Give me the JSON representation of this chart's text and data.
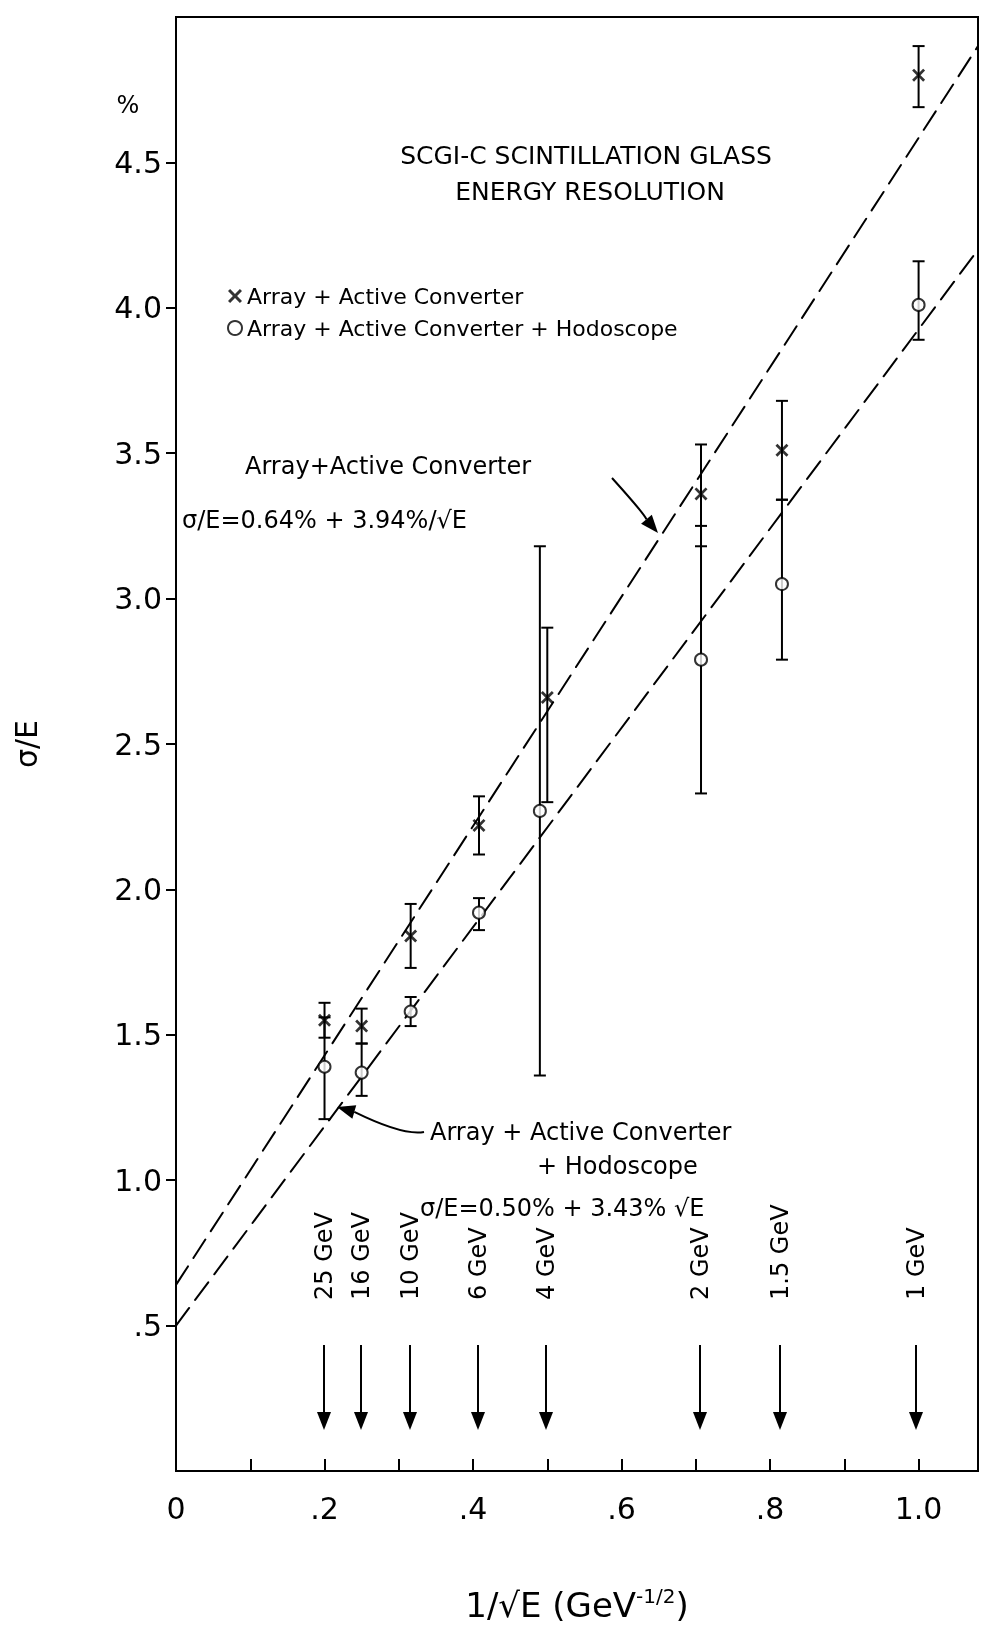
{
  "chart_data": {
    "type": "scatter",
    "title": "SCGI-C SCINTILLATION GLASS ENERGY RESOLUTION",
    "xlabel": "1/√E (GeV$^{-1/2}$)",
    "ylabel": "σ/E",
    "xlim": [
      0,
      1.08
    ],
    "ylim": [
      0,
      5
    ],
    "xticks": [
      0,
      {
        "value": 0.1,
        "label": null
      },
      {
        "value": 0.2,
        "label": ".2"
      },
      {
        "value": 0.3,
        "label": null
      },
      {
        "value": 0.4,
        "label": ".4"
      },
      {
        "value": 0.5,
        "label": null
      },
      {
        "value": 0.6,
        "label": ".6"
      },
      {
        "value": 0.7,
        "label": null
      },
      {
        "value": 0.8,
        "label": ".8"
      },
      {
        "value": 0.9,
        "label": null
      },
      {
        "value": 1.0,
        "label": "1.0"
      }
    ],
    "yticks": [
      {
        "value": 0.5,
        "label": ".5"
      },
      {
        "value": 1.0,
        "label": "1.0"
      },
      1.5,
      {
        "value": 2.0,
        "label": "2.0"
      },
      2.5,
      {
        "value": 3.0,
        "label": "3.0"
      },
      3.5,
      {
        "value": 4.0,
        "label": "4.0"
      },
      4.5
    ],
    "grid": false,
    "legend": "top left",
    "series": [
      {
        "name": "Array + Active Converter",
        "marker": "cross",
        "color": "#000000",
        "x": [
          0.2,
          0.25,
          0.316,
          0.408,
          0.5,
          0.707,
          0.816,
          1.0
        ],
        "values": [
          1.55,
          1.53,
          1.84,
          2.22,
          2.66,
          3.36,
          3.51,
          4.8
        ],
        "errors": [
          [
            1.49,
            1.61
          ],
          [
            1.47,
            1.59
          ],
          [
            1.73,
            1.95
          ],
          [
            2.12,
            2.32
          ],
          [
            2.3,
            2.9
          ],
          [
            3.18,
            3.53
          ],
          [
            3.34,
            3.68
          ],
          [
            4.69,
            4.9
          ]
        ]
      },
      {
        "name": "Array + Active Converter + Hodoscope",
        "marker": "circle",
        "color": "#000000",
        "x": [
          0.2,
          0.25,
          0.316,
          0.408,
          0.49,
          0.707,
          0.816,
          1.0
        ],
        "values": [
          1.39,
          1.37,
          1.58,
          1.92,
          2.27,
          2.79,
          3.05,
          4.01
        ],
        "errors": [
          [
            1.21,
            1.56
          ],
          [
            1.29,
            1.47
          ],
          [
            1.53,
            1.63
          ],
          [
            1.86,
            1.97
          ],
          [
            1.36,
            3.18
          ],
          [
            2.33,
            3.25
          ],
          [
            2.79,
            3.34
          ],
          [
            3.89,
            4.16
          ]
        ]
      },
      {
        "type": "line",
        "marker": "none",
        "line_style": "dashed",
        "color": "#000000",
        "x": [
          0,
          1.08
        ],
        "values": [
          0.64,
          4.9
        ]
      },
      {
        "type": "line",
        "marker": "none",
        "line_style": "dashed",
        "color": "#000000",
        "x": [
          0,
          1.08
        ],
        "values": [
          0.5,
          4.2
        ]
      }
    ],
    "annotations": [
      "%",
      "Array+Active Converter",
      "σ/E=0.64% + 3.94%/√E",
      "Array + Active Converter",
      "+ Hodoscope",
      "σ/E=0.50% + 3.43% √E",
      "25 GeV",
      "16 GeV",
      "10 GeV",
      "6 GeV",
      "4 GeV",
      "2 GeV",
      "1.5 GeV",
      "1 GeV"
    ]
  }
}
